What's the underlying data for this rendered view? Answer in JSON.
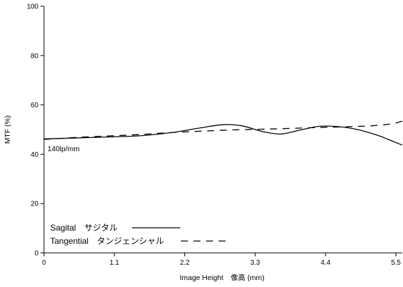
{
  "chart_data": {
    "type": "line",
    "xlabel": "Image Height　像高 (mm)",
    "ylabel": "MTF (%)",
    "xlim": [
      0,
      5.6
    ],
    "ylim": [
      0,
      100
    ],
    "x_ticks": [
      0,
      1.1,
      2.2,
      3.3,
      4.4,
      5.5
    ],
    "x_tick_labels": [
      "0",
      "1.1",
      "2.2",
      "3.3",
      "4.4",
      "5.5"
    ],
    "y_ticks": [
      0,
      20,
      40,
      60,
      80,
      100
    ],
    "y_tick_labels": [
      "0",
      "20",
      "40",
      "60",
      "80",
      "100"
    ],
    "annotation": "140lp/mm",
    "legend_position": "bottom-left",
    "grid": false,
    "series": [
      {
        "name": "Sagital　サジタル",
        "style": "solid",
        "x": [
          0,
          0.5,
          1.0,
          1.5,
          2.0,
          2.4,
          2.8,
          3.1,
          3.4,
          3.7,
          4.0,
          4.3,
          4.6,
          4.9,
          5.2,
          5.4,
          5.6
        ],
        "y": [
          46.2,
          46.6,
          47.0,
          47.5,
          48.8,
          50.5,
          52.0,
          51.5,
          49.3,
          48.2,
          49.8,
          51.3,
          51.2,
          50.0,
          47.8,
          45.8,
          43.7
        ]
      },
      {
        "name": "Tangential　タンジェンシャル",
        "style": "dashed",
        "x": [
          0,
          0.5,
          1.0,
          1.5,
          2.0,
          2.5,
          3.0,
          3.5,
          4.0,
          4.5,
          4.8,
          5.1,
          5.4,
          5.6
        ],
        "y": [
          46.0,
          46.8,
          47.4,
          48.0,
          48.8,
          49.4,
          49.9,
          50.2,
          50.6,
          51.0,
          51.2,
          51.5,
          52.2,
          53.4
        ]
      }
    ]
  }
}
